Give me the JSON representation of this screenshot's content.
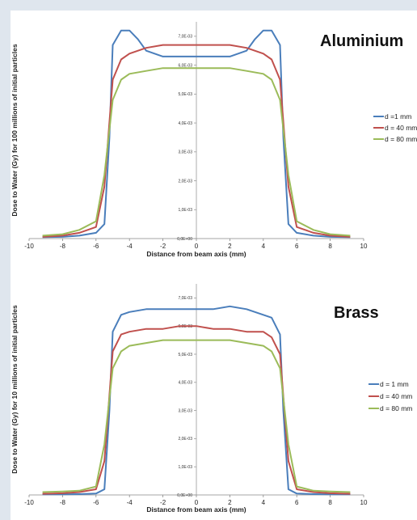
{
  "chart_data": [
    {
      "type": "line",
      "title": "Aluminium",
      "xlabel": "Distance from beam axis (mm)",
      "ylabel": "Dose to Water (Gy) for 100 millions of initial particles",
      "xlim": [
        -10,
        10
      ],
      "ylim": [
        0,
        0.0075
      ],
      "xticks": [
        -10,
        -8,
        -6,
        -4,
        -2,
        0,
        2,
        4,
        6,
        8,
        10
      ],
      "xtick_labels": [
        "-10",
        "-8",
        "-6",
        "-4",
        "-2",
        "0",
        "2",
        "4",
        "6",
        "8",
        "10"
      ],
      "yticks": [
        0,
        0.001,
        0.002,
        0.003,
        0.004,
        0.005,
        0.006,
        0.007
      ],
      "ytick_labels": [
        "0,0E+00",
        "1,0E-03",
        "2,0E-03",
        "3,0E-03",
        "4,0E-03",
        "5,0E-03",
        "6,0E-03",
        "7,0E-03"
      ],
      "legend_position": "right",
      "series": [
        {
          "name": "d =1 mm",
          "color": "#4a7ebb",
          "x": [
            -9.2,
            -8,
            -7,
            -6,
            -5.5,
            -5.2,
            -5.0,
            -4.5,
            -4.0,
            -3.5,
            -3,
            -2,
            -1,
            0,
            1,
            2,
            3,
            3.5,
            4.0,
            4.5,
            5.0,
            5.2,
            5.5,
            6,
            7,
            8,
            9.2
          ],
          "y": [
            5e-05,
            6e-05,
            0.0001,
            0.0002,
            0.0005,
            0.0035,
            0.0067,
            0.0072,
            0.0072,
            0.0069,
            0.0065,
            0.0063,
            0.0063,
            0.0063,
            0.0063,
            0.0063,
            0.0065,
            0.0069,
            0.0072,
            0.0072,
            0.0067,
            0.0035,
            0.0005,
            0.0002,
            0.0001,
            6e-05,
            5e-05
          ]
        },
        {
          "name": "d = 40 mm",
          "color": "#c0504d",
          "x": [
            -9.2,
            -8,
            -7,
            -6,
            -5.5,
            -5.0,
            -4.5,
            -4,
            -3,
            -2,
            -1,
            0,
            1,
            2,
            3,
            4,
            4.5,
            5.0,
            5.5,
            6,
            7,
            8,
            9.2
          ],
          "y": [
            6e-05,
            0.0001,
            0.0002,
            0.0004,
            0.0018,
            0.0055,
            0.0062,
            0.0064,
            0.0066,
            0.0067,
            0.0067,
            0.0067,
            0.0067,
            0.0067,
            0.0066,
            0.0064,
            0.0062,
            0.0055,
            0.0018,
            0.0004,
            0.0002,
            0.0001,
            6e-05
          ]
        },
        {
          "name": "d = 80 mm",
          "color": "#9bbb59",
          "x": [
            -9.2,
            -8,
            -7,
            -6,
            -5.5,
            -5.0,
            -4.5,
            -4,
            -3,
            -2,
            -1,
            0,
            1,
            2,
            3,
            4,
            4.5,
            5.0,
            5.5,
            6,
            7,
            8,
            9.2
          ],
          "y": [
            0.0001,
            0.00015,
            0.0003,
            0.0006,
            0.0022,
            0.0048,
            0.0055,
            0.0057,
            0.0058,
            0.0059,
            0.0059,
            0.0059,
            0.0059,
            0.0059,
            0.0058,
            0.0057,
            0.0055,
            0.0048,
            0.0022,
            0.0006,
            0.0003,
            0.00015,
            0.0001
          ]
        }
      ]
    },
    {
      "type": "line",
      "title": "Brass",
      "xlabel": "Distance from beam axis (mm)",
      "ylabel": "Dose to Water (Gy) for 10 millions of initial particles",
      "xlim": [
        -10,
        10
      ],
      "ylim": [
        0,
        0.0075
      ],
      "xticks": [
        -10,
        -8,
        -6,
        -4,
        -2,
        0,
        2,
        4,
        6,
        8,
        10
      ],
      "xtick_labels": [
        "-10",
        "-8",
        "-6",
        "-4",
        "-2",
        "0",
        "2",
        "4",
        "6",
        "8",
        "10"
      ],
      "yticks": [
        0,
        0.001,
        0.002,
        0.003,
        0.004,
        0.005,
        0.006,
        0.007
      ],
      "ytick_labels": [
        "0,0E+00",
        "1,0E-03",
        "2,0E-03",
        "3,0E-03",
        "4,0E-03",
        "5,0E-03",
        "6,0E-03",
        "7,0E-03"
      ],
      "legend_position": "right",
      "series": [
        {
          "name": "d = 1 mm",
          "color": "#4a7ebb",
          "x": [
            -9.2,
            -8,
            -7,
            -6,
            -5.5,
            -5.2,
            -5.0,
            -4.5,
            -4,
            -3,
            -2,
            -1,
            0,
            1,
            2,
            3,
            4,
            4.5,
            5.0,
            5.2,
            5.5,
            6,
            7,
            8,
            9.2
          ],
          "y": [
            2e-05,
            2e-05,
            3e-05,
            5e-05,
            0.0002,
            0.003,
            0.0058,
            0.0064,
            0.0065,
            0.0066,
            0.0066,
            0.0066,
            0.0066,
            0.0066,
            0.0067,
            0.0066,
            0.0064,
            0.0063,
            0.0057,
            0.003,
            0.0002,
            5e-05,
            3e-05,
            2e-05,
            2e-05
          ]
        },
        {
          "name": "d = 40 mm",
          "color": "#c0504d",
          "x": [
            -9.2,
            -8,
            -7,
            -6,
            -5.5,
            -5.0,
            -4.5,
            -4,
            -3,
            -2,
            -1,
            0,
            1,
            2,
            3,
            4,
            4.5,
            5.0,
            5.5,
            6,
            7,
            8,
            9.2
          ],
          "y": [
            4e-05,
            6e-05,
            0.0001,
            0.0002,
            0.0012,
            0.0051,
            0.0057,
            0.0058,
            0.0059,
            0.0059,
            0.006,
            0.006,
            0.0059,
            0.0059,
            0.0058,
            0.0058,
            0.0056,
            0.005,
            0.0012,
            0.0002,
            0.0001,
            6e-05,
            4e-05
          ]
        },
        {
          "name": "d = 80 mm",
          "color": "#9bbb59",
          "x": [
            -9.2,
            -8,
            -7,
            -6,
            -5.5,
            -5.0,
            -4.5,
            -4,
            -3,
            -2,
            -1,
            0,
            1,
            2,
            3,
            4,
            4.5,
            5.0,
            5.5,
            6,
            7,
            8,
            9.2
          ],
          "y": [
            0.0001,
            0.00012,
            0.00015,
            0.0003,
            0.0018,
            0.0045,
            0.0051,
            0.0053,
            0.0054,
            0.0055,
            0.0055,
            0.0055,
            0.0055,
            0.0055,
            0.0054,
            0.0053,
            0.0051,
            0.0045,
            0.0018,
            0.0003,
            0.00015,
            0.00012,
            0.0001
          ]
        }
      ]
    }
  ]
}
